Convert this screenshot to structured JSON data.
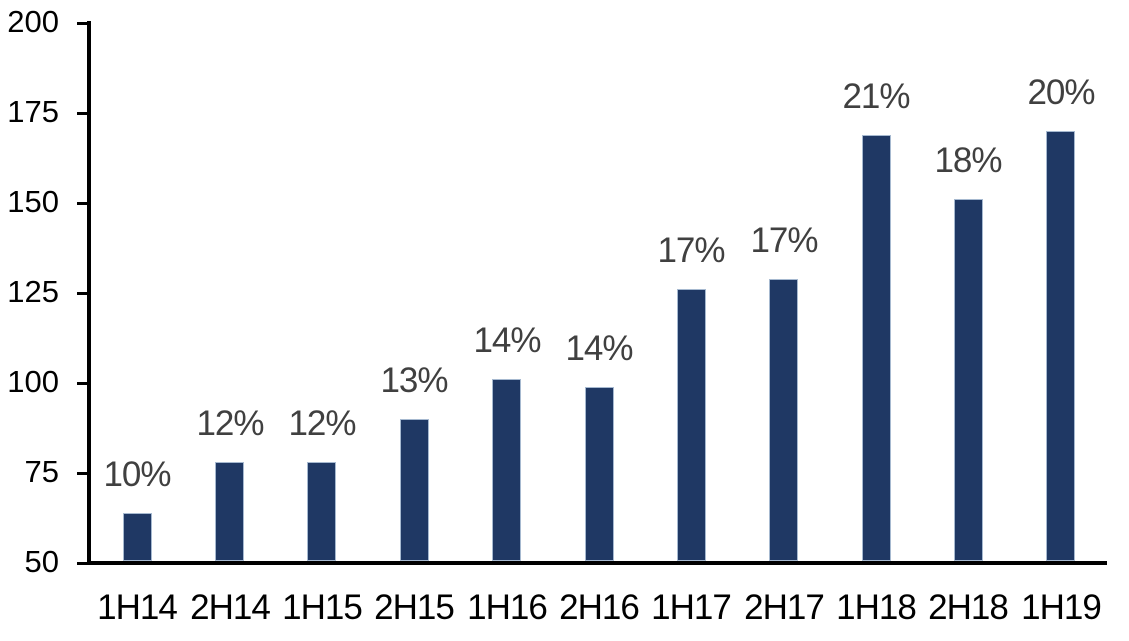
{
  "chart_data": {
    "type": "bar",
    "title": "",
    "xlabel": "",
    "ylabel": "",
    "categories": [
      "1H14",
      "2H14",
      "1H15",
      "2H15",
      "1H16",
      "2H16",
      "1H17",
      "2H17",
      "1H18",
      "2H18",
      "1H19"
    ],
    "values": [
      64,
      78,
      78,
      90,
      101,
      99,
      126,
      129,
      169,
      151,
      170
    ],
    "bar_labels": [
      "10%",
      "12%",
      "12%",
      "13%",
      "14%",
      "14%",
      "17%",
      "17%",
      "21%",
      "18%",
      "20%"
    ],
    "ylim": [
      50,
      200
    ],
    "yticks": [
      50,
      75,
      100,
      125,
      150,
      175,
      200
    ],
    "grid": false,
    "legend": false,
    "colors": {
      "bar_fill": "#1F3864",
      "bar_border": "#A6B9D0",
      "bar_label_text": "#404040",
      "axis_line": "#000000",
      "axis_label_text": "#000000",
      "background": "#FFFFFF"
    }
  }
}
